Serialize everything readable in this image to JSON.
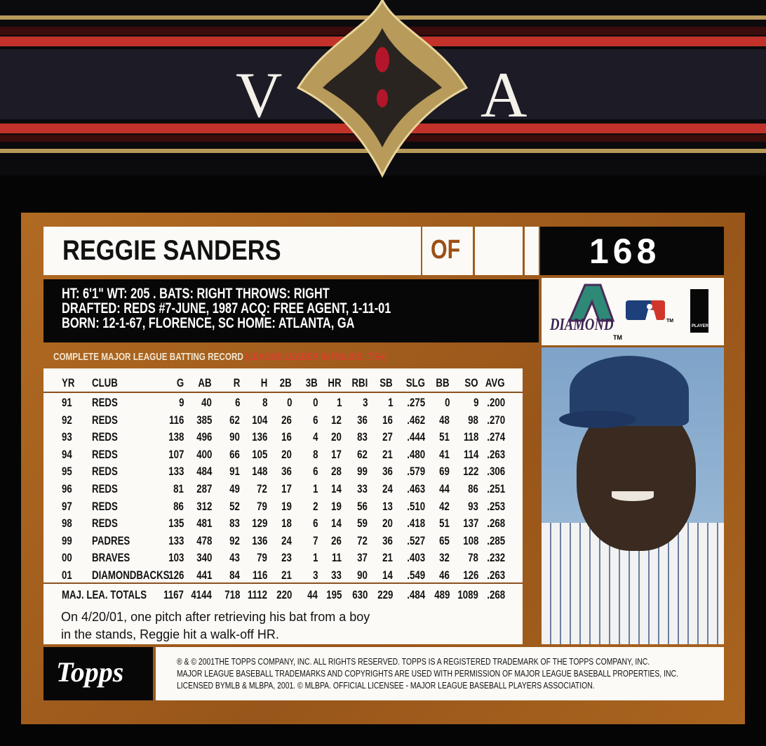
{
  "banner": {
    "left_letter": "V",
    "right_letter": "A"
  },
  "player": {
    "name": "REGGIE SANDERS",
    "position": "OF",
    "card_number": "168"
  },
  "bio": {
    "line1": "HT: 6'1\"   WT: 205 . BATS: RIGHT   THROWS: RIGHT",
    "line2": "DRAFTED: REDS #7-JUNE, 1987   ACQ: FREE AGENT, 1-11-01",
    "line3": "BORN: 12-1-67, FLORENCE, SC   HOME: ATLANTA, GA"
  },
  "logos": {
    "team": "DIAMOND",
    "tm1": "TM",
    "tm2": "TM",
    "players": "PLAYERS"
  },
  "record": {
    "title": "COMPLETE MAJOR LEAGUE BATTING RECORD",
    "note": "(LEAGUE LEADER IN ITALICS, TIE♦)",
    "columns": [
      "YR",
      "CLUB",
      "G",
      "AB",
      "R",
      "H",
      "2B",
      "3B",
      "HR",
      "RBI",
      "SB",
      "SLG",
      "BB",
      "SO",
      "AVG"
    ],
    "rows": [
      [
        "91",
        "REDS",
        "9",
        "40",
        "6",
        "8",
        "0",
        "0",
        "1",
        "3",
        "1",
        ".275",
        "0",
        "9",
        ".200"
      ],
      [
        "92",
        "REDS",
        "116",
        "385",
        "62",
        "104",
        "26",
        "6",
        "12",
        "36",
        "16",
        ".462",
        "48",
        "98",
        ".270"
      ],
      [
        "93",
        "REDS",
        "138",
        "496",
        "90",
        "136",
        "16",
        "4",
        "20",
        "83",
        "27",
        ".444",
        "51",
        "118",
        ".274"
      ],
      [
        "94",
        "REDS",
        "107",
        "400",
        "66",
        "105",
        "20",
        "8",
        "17",
        "62",
        "21",
        ".480",
        "41",
        "114",
        ".263"
      ],
      [
        "95",
        "REDS",
        "133",
        "484",
        "91",
        "148",
        "36",
        "6",
        "28",
        "99",
        "36",
        ".579",
        "69",
        "122",
        ".306"
      ],
      [
        "96",
        "REDS",
        "81",
        "287",
        "49",
        "72",
        "17",
        "1",
        "14",
        "33",
        "24",
        ".463",
        "44",
        "86",
        ".251"
      ],
      [
        "97",
        "REDS",
        "86",
        "312",
        "52",
        "79",
        "19",
        "2",
        "19",
        "56",
        "13",
        ".510",
        "42",
        "93",
        ".253"
      ],
      [
        "98",
        "REDS",
        "135",
        "481",
        "83",
        "129",
        "18",
        "6",
        "14",
        "59",
        "20",
        ".418",
        "51",
        "137",
        ".268"
      ],
      [
        "99",
        "PADRES",
        "133",
        "478",
        "92",
        "136",
        "24",
        "7",
        "26",
        "72",
        "36",
        ".527",
        "65",
        "108",
        ".285"
      ],
      [
        "00",
        "BRAVES",
        "103",
        "340",
        "43",
        "79",
        "23",
        "1",
        "11",
        "37",
        "21",
        ".403",
        "32",
        "78",
        ".232"
      ],
      [
        "01",
        "DIAMONDBACKS",
        "126",
        "441",
        "84",
        "116",
        "21",
        "3",
        "33",
        "90",
        "14",
        ".549",
        "46",
        "126",
        ".263"
      ]
    ],
    "totals_label": "MAJ. LEA. TOTALS",
    "totals": [
      "1167",
      "4144",
      "718",
      "1112",
      "220",
      "44",
      "195",
      "630",
      "229",
      ".484",
      "489",
      "1089",
      ".268"
    ]
  },
  "blurb": {
    "line1": "On 4/20/01, one pitch after retrieving his bat from a boy",
    "line2": "in the stands, Reggie hit a walk-off HR."
  },
  "footer": {
    "brand": "Topps",
    "legal1": "® & © 2001THE TOPPS COMPANY, INC. ALL RIGHTS RESERVED. TOPPS IS A REGISTERED TRADEMARK OF THE  TOPPS COMPANY, INC.",
    "legal2": "MAJOR LEAGUE BASEBALL TRADEMARKS AND COPYRIGHTS ARE USED WITH PERMISSION OF MAJOR LEAGUE BASEBALL PROPERTIES, INC.",
    "legal3": "LICENSED BYMLB & MLBPA, 2001. © MLBPA. OFFICIAL LICENSEE - MAJOR LEAGUE BASEBALL PLAYERS ASSOCIATION."
  },
  "colors": {
    "card_border": "#a8641f",
    "accent_orange": "#9b4f14",
    "banner_red": "#c2322a",
    "gold": "#c9a865"
  }
}
